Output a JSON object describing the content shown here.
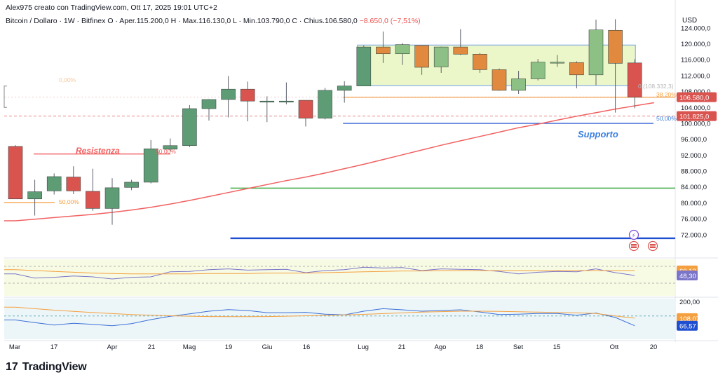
{
  "header": {
    "byline": "Alex975 creato con TradingView.com, Ott 17, 2025 19:01 UTC+2",
    "symbol": "Bitcoin / Dollaro · 1W · Bitfinex",
    "ohlc": "O · Aper.115.200,0  H · Max.116.130,0  L · Min.103.790,0  C · Chius.106.580,0",
    "change": "−8.650,0 (−7,51%)"
  },
  "brand": {
    "logo_mark": "17",
    "logo_text": "TradingView"
  },
  "colors": {
    "up": "#5e9c76",
    "down": "#d9534f",
    "orange_candle": "#e0893f",
    "green_candle": "#8cc084",
    "ma": "#f26161",
    "support": "#1f4fd1",
    "green_line": "#4caf50",
    "orange_line": "#f5a040",
    "box_fill": "#ecf7c9",
    "box_stroke": "#6fa0e0"
  },
  "chart_data": [
    {
      "type": "candlestick",
      "title": "",
      "ylabel": "USD",
      "ylim": [
        66500,
        127500
      ],
      "y_ticks": [
        "124.000,0",
        "120.000,0",
        "116.000,0",
        "112.000,0",
        "108.000,0",
        "104.000,0",
        "100.000,0",
        "96.000,0",
        "92.000,0",
        "88.000,0",
        "84.000,0",
        "80.000,0",
        "76.000,0",
        "72.000,0"
      ],
      "x_labels": [
        "Mar",
        "17",
        "Apr",
        "21",
        "Mag",
        "19",
        "Giu",
        "16",
        "Lug",
        "21",
        "Ago",
        "18",
        "Set",
        "15",
        "Ott",
        "20"
      ],
      "candles": [
        {
          "o": 94200,
          "h": 94500,
          "l": 81000,
          "c": 81000,
          "color": "down"
        },
        {
          "o": 81000,
          "h": 85800,
          "l": 76800,
          "c": 82800,
          "color": "up"
        },
        {
          "o": 83000,
          "h": 87400,
          "l": 82100,
          "c": 86600,
          "color": "up"
        },
        {
          "o": 86500,
          "h": 89200,
          "l": 82200,
          "c": 83000,
          "color": "down"
        },
        {
          "o": 82900,
          "h": 88600,
          "l": 78000,
          "c": 78600,
          "color": "down"
        },
        {
          "o": 78600,
          "h": 86200,
          "l": 74500,
          "c": 83800,
          "color": "up"
        },
        {
          "o": 83900,
          "h": 85800,
          "l": 83200,
          "c": 85200,
          "color": "up"
        },
        {
          "o": 85200,
          "h": 95800,
          "l": 84900,
          "c": 93600,
          "color": "up"
        },
        {
          "o": 93500,
          "h": 96200,
          "l": 92900,
          "c": 94400,
          "color": "up"
        },
        {
          "o": 94400,
          "h": 104600,
          "l": 94000,
          "c": 103700,
          "color": "up"
        },
        {
          "o": 103700,
          "h": 106100,
          "l": 100700,
          "c": 106000,
          "color": "up"
        },
        {
          "o": 106000,
          "h": 111900,
          "l": 101500,
          "c": 108600,
          "color": "up"
        },
        {
          "o": 108600,
          "h": 110500,
          "l": 100500,
          "c": 105600,
          "color": "down"
        },
        {
          "o": 105600,
          "h": 106800,
          "l": 100300,
          "c": 105400,
          "color": "up"
        },
        {
          "o": 105400,
          "h": 110300,
          "l": 104800,
          "c": 105600,
          "color": "up"
        },
        {
          "o": 105800,
          "h": 105800,
          "l": 99200,
          "c": 101300,
          "color": "down"
        },
        {
          "o": 101300,
          "h": 108900,
          "l": 101000,
          "c": 108300,
          "color": "up"
        },
        {
          "o": 108300,
          "h": 110600,
          "l": 105200,
          "c": 109400,
          "color": "up"
        },
        {
          "o": 109400,
          "h": 119600,
          "l": 109400,
          "c": 119200,
          "color": "up"
        },
        {
          "o": 119200,
          "h": 123100,
          "l": 115200,
          "c": 117500,
          "color": "orange"
        },
        {
          "o": 117500,
          "h": 120200,
          "l": 114700,
          "c": 119800,
          "color": "green"
        },
        {
          "o": 119600,
          "h": 119600,
          "l": 112200,
          "c": 114100,
          "color": "orange"
        },
        {
          "o": 114200,
          "h": 119300,
          "l": 112700,
          "c": 119200,
          "color": "green"
        },
        {
          "o": 119200,
          "h": 123700,
          "l": 117200,
          "c": 117400,
          "color": "orange"
        },
        {
          "o": 117400,
          "h": 117700,
          "l": 112700,
          "c": 113500,
          "color": "orange"
        },
        {
          "o": 113500,
          "h": 113800,
          "l": 108200,
          "c": 108300,
          "color": "orange"
        },
        {
          "o": 108300,
          "h": 113200,
          "l": 107400,
          "c": 111200,
          "color": "green"
        },
        {
          "o": 111200,
          "h": 116200,
          "l": 110800,
          "c": 115400,
          "color": "green"
        },
        {
          "o": 115400,
          "h": 117200,
          "l": 114200,
          "c": 115200,
          "color": "green"
        },
        {
          "o": 115300,
          "h": 115600,
          "l": 108800,
          "c": 112200,
          "color": "orange"
        },
        {
          "o": 112200,
          "h": 126100,
          "l": 109600,
          "c": 123500,
          "color": "green"
        },
        {
          "o": 123400,
          "h": 126200,
          "l": 102700,
          "c": 115100,
          "color": "orange"
        },
        {
          "o": 115200,
          "h": 116130,
          "l": 103790,
          "c": 106580,
          "color": "down"
        }
      ],
      "moving_average": [
        75500,
        75900,
        76300,
        76700,
        77100,
        77600,
        78200,
        78900,
        79700,
        80600,
        81600,
        82600,
        83600,
        84600,
        85600,
        86500,
        87500,
        88600,
        89700,
        90900,
        92100,
        93300,
        94500,
        95600,
        96700,
        97800,
        98900,
        99800,
        100800,
        101800,
        102700,
        103600,
        104400
      ],
      "horizontal_levels": [
        {
          "price": 106580,
          "style": "solid",
          "color": "orange_line"
        },
        {
          "price": 101825,
          "style": "dashed",
          "color": "down"
        },
        {
          "price": 100000,
          "style": "solid",
          "color": "support"
        },
        {
          "price": 83700,
          "style": "solid",
          "color": "green_line"
        },
        {
          "price": 71100,
          "style": "solid",
          "color": "support"
        },
        {
          "price": 92300,
          "style": "solid",
          "color": "ma"
        },
        {
          "price": 80100,
          "style": "solid",
          "color": "orange_line"
        }
      ],
      "range_box": {
        "top": 119700,
        "bottom": 109500
      },
      "annotations": [
        {
          "text": "Resistenza",
          "color": "ma"
        },
        {
          "text": "Supporto",
          "color": "support"
        },
        {
          "text": "50,00%",
          "color": "orange_line"
        },
        {
          "text": "50,00%",
          "color": "down"
        },
        {
          "text": "38,20%",
          "color": "orange_line"
        },
        {
          "text": "50,00%",
          "color": "support"
        },
        {
          "text": "0,00%",
          "color": "orange_line"
        },
        {
          "text": "0 (108.332,3)",
          "color": "muted"
        }
      ],
      "price_tags": [
        {
          "text": "106.580,0",
          "bg": "down"
        },
        {
          "text": "101.825,0",
          "bg": "down"
        }
      ]
    },
    {
      "type": "line",
      "title": "",
      "ylim": [
        0,
        100
      ],
      "series": [
        {
          "name": "",
          "color": "#7b75c9",
          "values": [
            52,
            42,
            44,
            47,
            45,
            40,
            44,
            45,
            57,
            58,
            62,
            64,
            61,
            62,
            63,
            55,
            60,
            62,
            68,
            66,
            67,
            60,
            64,
            63,
            62,
            58,
            52,
            56,
            58,
            57,
            64,
            55,
            48.3
          ]
        },
        {
          "name": "",
          "color": "#f5a040",
          "values": [
            62,
            60,
            58,
            56,
            54,
            53,
            52,
            52,
            52,
            52,
            53,
            53,
            53,
            54,
            54,
            54,
            55,
            56,
            57,
            58,
            59,
            59,
            60,
            60,
            60,
            60,
            60,
            60,
            60,
            60,
            60,
            60,
            60.13
          ]
        }
      ],
      "dashed_levels": [
        70,
        30
      ],
      "value_tags": [
        "60,13",
        "48,30"
      ]
    },
    {
      "type": "line",
      "title": "",
      "y_ticks": [
        "200,00"
      ],
      "series": [
        {
          "name": "",
          "color": "#3b6fd6",
          "values": [
            98,
            84,
            70,
            80,
            74,
            66,
            78,
            100,
            118,
            132,
            146,
            155,
            150,
            138,
            138,
            140,
            130,
            126,
            146,
            160,
            154,
            146,
            150,
            154,
            142,
            128,
            130,
            134,
            134,
            124,
            136,
            112,
            66.57
          ]
        },
        {
          "name": "",
          "color": "#f5a040",
          "values": [
            168,
            160,
            152,
            145,
            139,
            133,
            128,
            124,
            121,
            119,
            117,
            116,
            116,
            117,
            119,
            121,
            123,
            126,
            129,
            133,
            137,
            141,
            144,
            146,
            146,
            145,
            143,
            141,
            139,
            137,
            134,
            120,
            108.07
          ]
        }
      ],
      "dashed_levels": [
        120
      ],
      "value_tags": [
        "108,07",
        "66,57"
      ]
    }
  ]
}
